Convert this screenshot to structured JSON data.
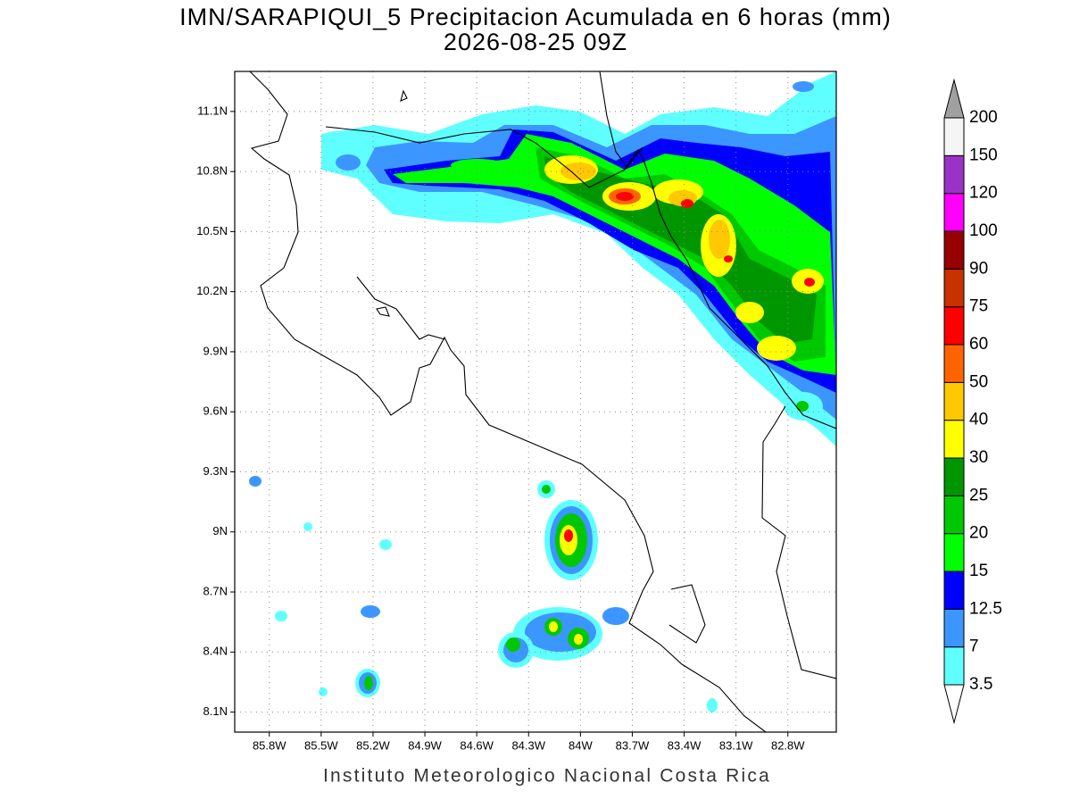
{
  "title": "IMN/SARAPIQUI_5 Precipitacion Acumulada en 6 horas (mm)",
  "subtitle": "2026-08-25 09Z",
  "map": {
    "xlim": [
      -86.0,
      -82.52
    ],
    "ylim": [
      8.0,
      11.3
    ],
    "xticks": [
      {
        "value": -85.8,
        "label": "85.8W"
      },
      {
        "value": -85.5,
        "label": "85.5W"
      },
      {
        "value": -85.2,
        "label": "85.2W"
      },
      {
        "value": -84.9,
        "label": "84.9W"
      },
      {
        "value": -84.6,
        "label": "84.6W"
      },
      {
        "value": -84.3,
        "label": "84.3W"
      },
      {
        "value": -84.0,
        "label": "84W"
      },
      {
        "value": -83.7,
        "label": "83.7W"
      },
      {
        "value": -83.4,
        "label": "83.4W"
      },
      {
        "value": -83.1,
        "label": "83.1W"
      },
      {
        "value": -82.8,
        "label": "82.8W"
      }
    ],
    "yticks": [
      {
        "value": 8.1,
        "label": "8.1N"
      },
      {
        "value": 8.4,
        "label": "8.4N"
      },
      {
        "value": 8.7,
        "label": "8.7N"
      },
      {
        "value": 9.0,
        "label": "9N"
      },
      {
        "value": 9.3,
        "label": "9.3N"
      },
      {
        "value": 9.6,
        "label": "9.6N"
      },
      {
        "value": 9.9,
        "label": "9.9N"
      },
      {
        "value": 10.2,
        "label": "10.2N"
      },
      {
        "value": 10.5,
        "label": "10.5N"
      },
      {
        "value": 10.8,
        "label": "10.8N"
      },
      {
        "value": 11.1,
        "label": "11.1N"
      }
    ],
    "grid": true
  },
  "colorbar": {
    "levels": [
      3.5,
      7,
      12.5,
      15,
      20,
      25,
      30,
      40,
      50,
      60,
      75,
      90,
      100,
      120,
      150,
      200
    ],
    "colors": [
      "#60ffff",
      "#3c96ff",
      "#0000ff",
      "#00ff00",
      "#00c800",
      "#009600",
      "#ffff00",
      "#ffc800",
      "#ff6400",
      "#ff0000",
      "#c83200",
      "#960000",
      "#ff00ff",
      "#9b32c8",
      "#f5f5f5"
    ],
    "under_color": "#ffffff",
    "over_color": "#a0a0a0"
  },
  "footer": "Instituto Meteorologico Nacional Costa Rica"
}
